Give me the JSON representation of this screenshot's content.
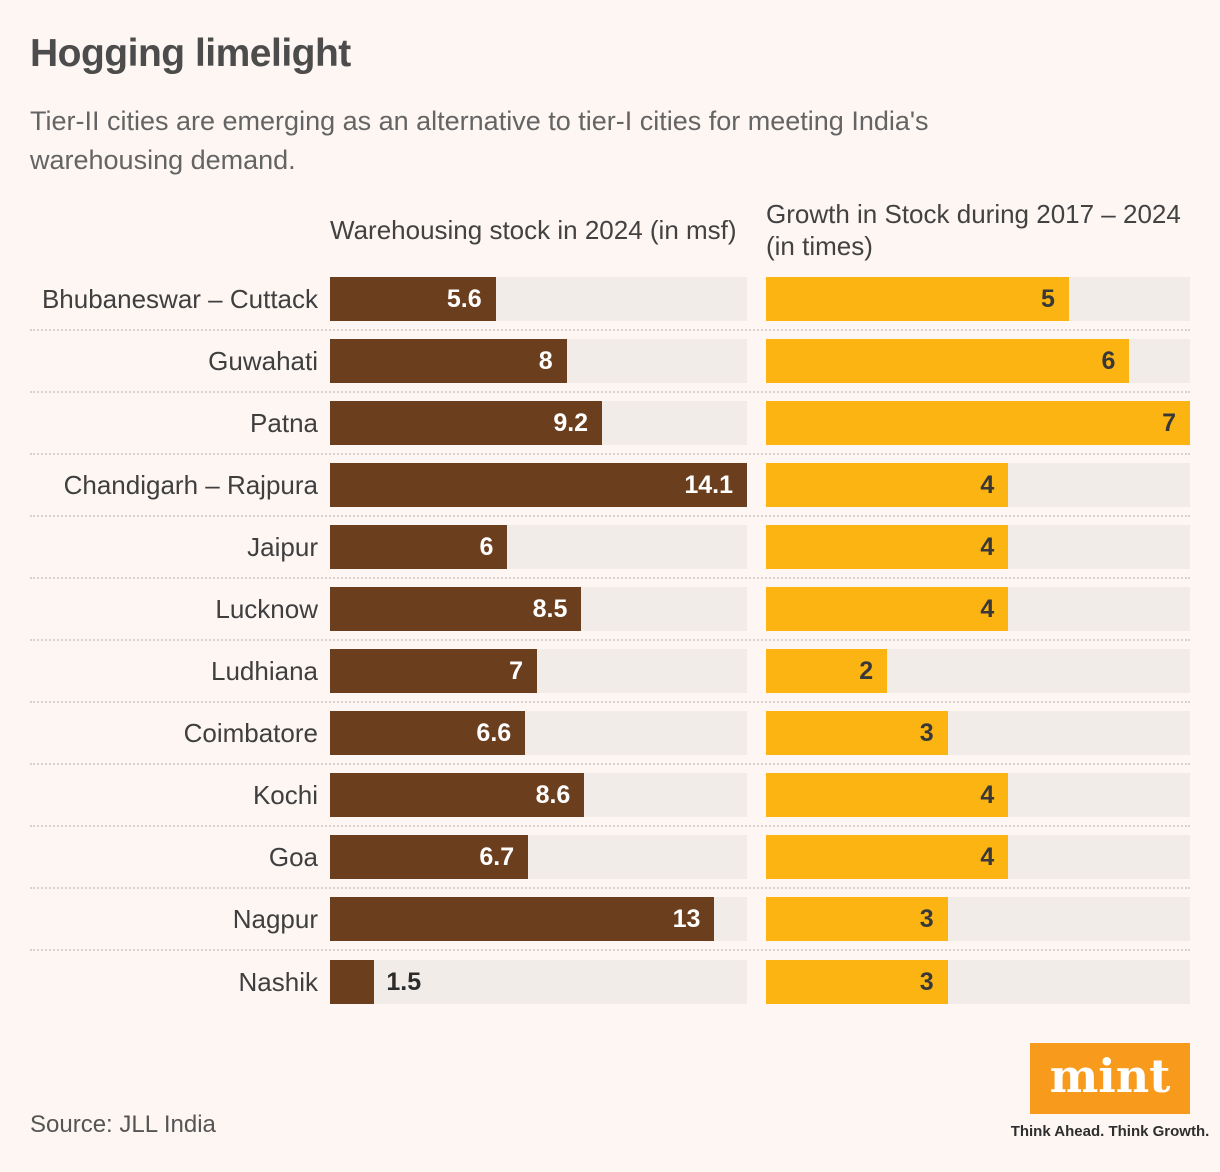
{
  "page": {
    "title": "Hogging limelight",
    "subtitle": "Tier-II cities are emerging as an alternative to tier-I cities for meeting India's warehousing demand.",
    "source": "Source: JLL India",
    "brand": {
      "logo_text": "mint",
      "tagline": "Think Ahead. Think Growth."
    }
  },
  "colors": {
    "background": "#FDF6F3",
    "bar_track": "#F1ECE8",
    "stock_bar_brown": "#6B3E1E",
    "growth_bar_yellow": "#FBB411",
    "logo_orange": "#F89B1C"
  },
  "chart_data": {
    "type": "bar",
    "orientation": "horizontal",
    "title": "Hogging limelight",
    "subtitle": "Tier-II cities are emerging as an alternative to tier-I cities for meeting India's warehousing demand.",
    "column_headers": [
      "Warehousing stock in 2024 (in msf)",
      "Growth in Stock during 2017 – 2024 (in times)"
    ],
    "categories": [
      "Bhubaneswar – Cuttack",
      "Guwahati",
      "Patna",
      "Chandigarh – Rajpura",
      "Jaipur",
      "Lucknow",
      "Ludhiana",
      "Coimbatore",
      "Kochi",
      "Goa",
      "Nagpur",
      "Nashik"
    ],
    "series": [
      {
        "name": "Warehousing stock in 2024 (in msf)",
        "values": [
          5.6,
          8,
          9.2,
          14.1,
          6,
          8.5,
          7,
          6.6,
          8.6,
          6.7,
          13,
          1.5
        ],
        "axis_max": 14.1,
        "color": "#6B3E1E"
      },
      {
        "name": "Growth in Stock during 2017 – 2024 (in times)",
        "values": [
          5,
          6,
          7,
          4,
          4,
          4,
          2,
          3,
          4,
          4,
          3,
          3
        ],
        "axis_max": 7,
        "color": "#FBB411"
      }
    ],
    "grid": false,
    "legend_position": "column-headers",
    "value_labels": "inside-bar-end"
  }
}
